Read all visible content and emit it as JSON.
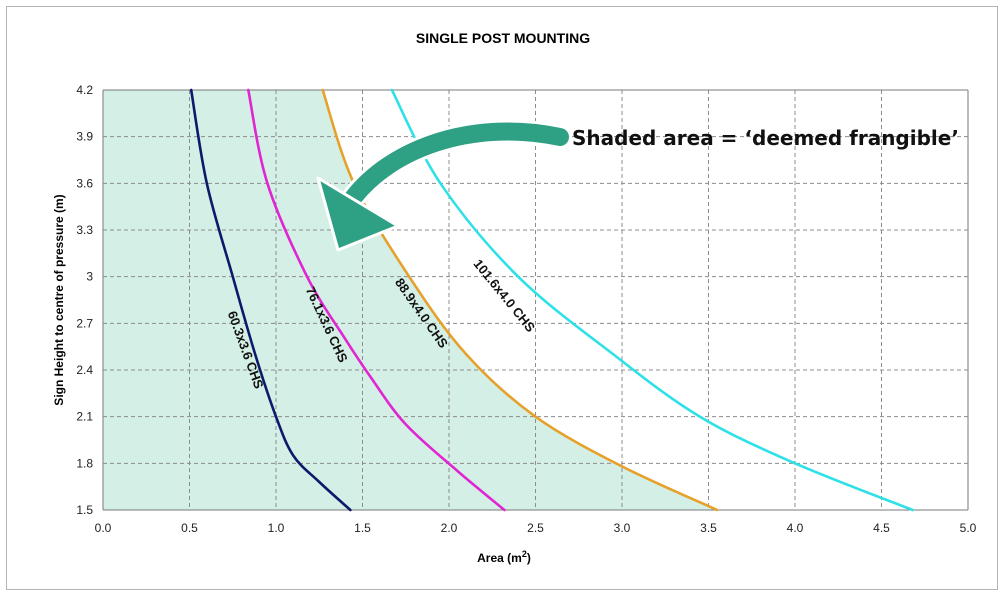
{
  "chart_data": {
    "type": "line",
    "title": "SINGLE POST MOUNTING",
    "xlabel": "Area (m²)",
    "ylabel": "Sign Height to centre of pressure  (m)",
    "xlim": [
      0.0,
      5.0
    ],
    "ylim": [
      1.5,
      4.2
    ],
    "xticks": [
      "0.0",
      "0.5",
      "1.0",
      "1.5",
      "2.0",
      "2.5",
      "3.0",
      "3.5",
      "4.0",
      "4.5",
      "5.0"
    ],
    "yticks": [
      "1.5",
      "1.8",
      "2.1",
      "2.4",
      "2.7",
      "3",
      "3.3",
      "3.6",
      "3.9",
      "4.2"
    ],
    "grid": true,
    "shaded_region": {
      "label": "Shaded area = ‘deemed frangible’",
      "bounded_by": "88.9x4.0 CHS",
      "color": "#d4efe6"
    },
    "series": [
      {
        "name": "60.3x3.6 CHS",
        "color": "#0d1a6b",
        "x": [
          0.51,
          0.6,
          0.75,
          0.88,
          1.0,
          1.1,
          1.25,
          1.43
        ],
        "y": [
          4.2,
          3.6,
          3.0,
          2.5,
          2.1,
          1.85,
          1.68,
          1.5
        ]
      },
      {
        "name": "76.1x3.6 CHS",
        "color": "#e026d2",
        "x": [
          0.84,
          0.95,
          1.18,
          1.4,
          1.55,
          1.75,
          2.05,
          2.32
        ],
        "y": [
          4.2,
          3.6,
          3.0,
          2.6,
          2.35,
          2.05,
          1.75,
          1.5
        ]
      },
      {
        "name": "88.9x4.0 CHS",
        "color": "#e6a12a",
        "x": [
          1.27,
          1.45,
          1.77,
          2.1,
          2.5,
          3.0,
          3.55
        ],
        "y": [
          4.2,
          3.6,
          3.0,
          2.5,
          2.1,
          1.78,
          1.5
        ]
      },
      {
        "name": "101.6x4.0 CHS",
        "color": "#2ee0e8",
        "x": [
          1.67,
          1.95,
          2.4,
          2.95,
          3.45,
          4.0,
          4.68
        ],
        "y": [
          4.2,
          3.6,
          3.0,
          2.5,
          2.1,
          1.8,
          1.5
        ]
      }
    ]
  }
}
